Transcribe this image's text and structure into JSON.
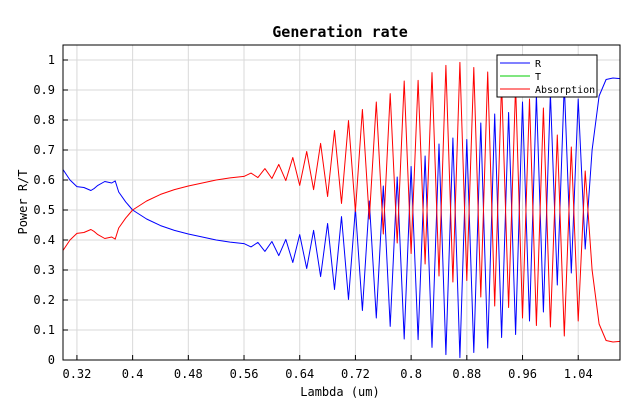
{
  "chart_data": {
    "type": "line",
    "title": "Generation rate",
    "xlabel": "Lambda (um)",
    "ylabel": "Power R/T",
    "xlim": [
      0.3,
      1.1
    ],
    "ylim": [
      0,
      1.05
    ],
    "xticks": [
      0.32,
      0.4,
      0.48,
      0.56,
      0.64,
      0.72,
      0.8,
      0.88,
      0.96,
      1.04
    ],
    "xtick_labels": [
      "0.32",
      "0.4",
      "0.48",
      "0.56",
      "0.64",
      "0.72",
      "0.8",
      "0.88",
      "0.96",
      "1.04"
    ],
    "yticks": [
      0,
      0.1,
      0.2,
      0.3,
      0.4,
      0.5,
      0.6,
      0.7,
      0.8,
      0.9,
      1
    ],
    "ytick_labels": [
      "0",
      "0.1",
      "0.2",
      "0.3",
      "0.4",
      "0.5",
      "0.6",
      "0.7",
      "0.8",
      "0.9",
      "1"
    ],
    "grid": true,
    "legend_position": "top-right",
    "series": [
      {
        "name": "R",
        "color": "#0000ff",
        "x": [
          0.3,
          0.31,
          0.32,
          0.33,
          0.34,
          0.345,
          0.35,
          0.36,
          0.37,
          0.375,
          0.38,
          0.39,
          0.4,
          0.42,
          0.44,
          0.46,
          0.48,
          0.5,
          0.52,
          0.54,
          0.56,
          0.57,
          0.58,
          0.59,
          0.6,
          0.61,
          0.62,
          0.63,
          0.64,
          0.65,
          0.66,
          0.67,
          0.68,
          0.69,
          0.7,
          0.71,
          0.72,
          0.73,
          0.74,
          0.75,
          0.76,
          0.77,
          0.78,
          0.79,
          0.8,
          0.81,
          0.82,
          0.83,
          0.84,
          0.85,
          0.86,
          0.87,
          0.88,
          0.89,
          0.9,
          0.91,
          0.92,
          0.93,
          0.94,
          0.95,
          0.96,
          0.97,
          0.98,
          0.99,
          1.0,
          1.01,
          1.02,
          1.03,
          1.04,
          1.05,
          1.06,
          1.07,
          1.08,
          1.09,
          1.1
        ],
        "y": [
          0.635,
          0.6,
          0.578,
          0.575,
          0.565,
          0.572,
          0.582,
          0.595,
          0.59,
          0.597,
          0.56,
          0.527,
          0.5,
          0.47,
          0.448,
          0.432,
          0.42,
          0.41,
          0.4,
          0.393,
          0.388,
          0.377,
          0.392,
          0.362,
          0.395,
          0.348,
          0.402,
          0.325,
          0.418,
          0.305,
          0.432,
          0.278,
          0.455,
          0.235,
          0.478,
          0.202,
          0.505,
          0.165,
          0.53,
          0.14,
          0.58,
          0.112,
          0.61,
          0.07,
          0.645,
          0.068,
          0.68,
          0.042,
          0.72,
          0.018,
          0.74,
          0.008,
          0.735,
          0.025,
          0.79,
          0.04,
          0.82,
          0.075,
          0.825,
          0.085,
          0.86,
          0.13,
          0.885,
          0.16,
          0.89,
          0.25,
          0.92,
          0.29,
          0.87,
          0.37,
          0.7,
          0.88,
          0.935,
          0.94,
          0.938
        ]
      },
      {
        "name": "T",
        "color": "#00cc00",
        "x": [
          0.3,
          1.1
        ],
        "y": [
          0.0,
          0.0
        ]
      },
      {
        "name": "Absorption",
        "color": "#ff0000",
        "x": [
          0.3,
          0.31,
          0.32,
          0.33,
          0.34,
          0.345,
          0.35,
          0.36,
          0.37,
          0.375,
          0.38,
          0.39,
          0.4,
          0.42,
          0.44,
          0.46,
          0.48,
          0.5,
          0.52,
          0.54,
          0.56,
          0.57,
          0.58,
          0.59,
          0.6,
          0.61,
          0.62,
          0.63,
          0.64,
          0.65,
          0.66,
          0.67,
          0.68,
          0.69,
          0.7,
          0.71,
          0.72,
          0.73,
          0.74,
          0.75,
          0.76,
          0.77,
          0.78,
          0.79,
          0.8,
          0.81,
          0.82,
          0.83,
          0.84,
          0.85,
          0.86,
          0.87,
          0.88,
          0.89,
          0.9,
          0.91,
          0.92,
          0.93,
          0.94,
          0.95,
          0.96,
          0.97,
          0.98,
          0.99,
          1.0,
          1.01,
          1.02,
          1.03,
          1.04,
          1.05,
          1.06,
          1.07,
          1.08,
          1.09,
          1.1
        ],
        "y": [
          0.365,
          0.4,
          0.422,
          0.425,
          0.435,
          0.428,
          0.418,
          0.405,
          0.41,
          0.403,
          0.44,
          0.473,
          0.5,
          0.53,
          0.552,
          0.568,
          0.58,
          0.59,
          0.6,
          0.607,
          0.612,
          0.623,
          0.608,
          0.638,
          0.605,
          0.652,
          0.598,
          0.675,
          0.582,
          0.695,
          0.568,
          0.722,
          0.545,
          0.765,
          0.522,
          0.798,
          0.495,
          0.835,
          0.47,
          0.86,
          0.42,
          0.888,
          0.39,
          0.93,
          0.355,
          0.932,
          0.32,
          0.958,
          0.28,
          0.982,
          0.26,
          0.992,
          0.265,
          0.975,
          0.21,
          0.96,
          0.18,
          0.925,
          0.175,
          0.915,
          0.14,
          0.87,
          0.115,
          0.84,
          0.11,
          0.75,
          0.08,
          0.71,
          0.13,
          0.63,
          0.3,
          0.12,
          0.065,
          0.06,
          0.062
        ]
      }
    ]
  }
}
